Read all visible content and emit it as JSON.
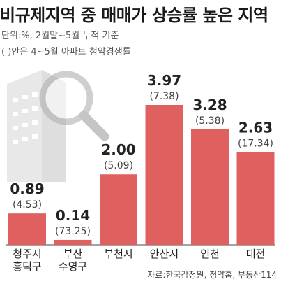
{
  "title": "비규제지역 중 매매가 상승률 높은 지역",
  "subtitle_unit": "단위:%, 2월말~5월 누적 기준",
  "subtitle_note": "( )안은 4~5월 아파트 청약경쟁률",
  "source": "자료:한국감정원, 청약홈, 부동산114",
  "colors": {
    "bar": "#e06060",
    "building": "#cccccc"
  },
  "icons": [
    "building-icon",
    "magnifier-icon"
  ],
  "chart_data": {
    "type": "bar",
    "categories": [
      [
        "청주시",
        "흥덕구"
      ],
      [
        "부산",
        "수영구"
      ],
      [
        "부천시"
      ],
      [
        "안산시"
      ],
      [
        "인천"
      ],
      [
        "대전"
      ]
    ],
    "values": [
      0.89,
      0.14,
      2.0,
      3.97,
      3.28,
      2.63
    ],
    "value_labels": [
      "0.89",
      "0.14",
      "2.00",
      "3.97",
      "3.28",
      "2.63"
    ],
    "competition_rates": [
      "(4.53)",
      "(73.25)",
      "(5.09)",
      "(7.38)",
      "(5.38)",
      "(17.34)"
    ],
    "ylim": [
      0,
      4.2
    ],
    "grid": false
  }
}
